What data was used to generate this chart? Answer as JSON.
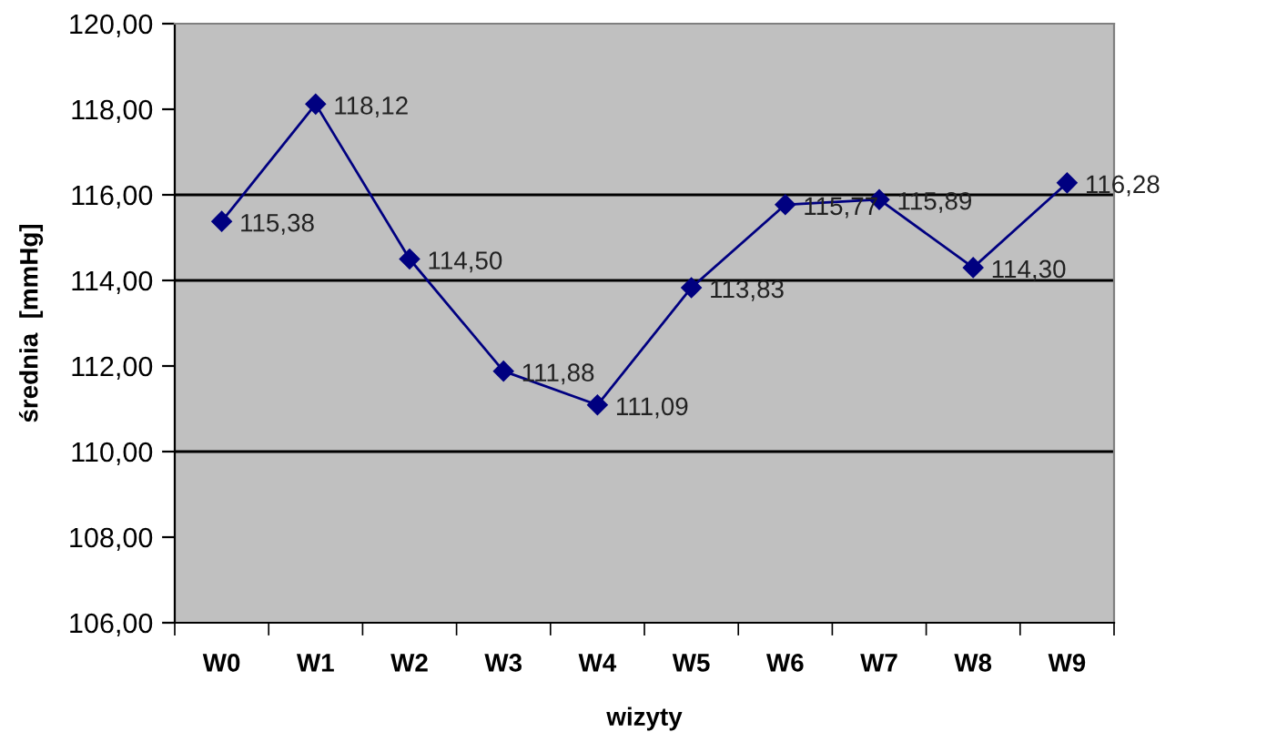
{
  "chart_data": {
    "type": "line",
    "xlabel": "wizyty",
    "ylabel": "średnia  [mmHg]",
    "categories": [
      "W0",
      "W1",
      "W2",
      "W3",
      "W4",
      "W5",
      "W6",
      "W7",
      "W8",
      "W9"
    ],
    "series": [
      {
        "color": "#000080",
        "values": [
          115.38,
          118.12,
          114.5,
          111.88,
          111.09,
          113.83,
          115.77,
          115.89,
          114.3,
          116.28
        ]
      }
    ],
    "value_labels": [
      "115,38",
      "118,12",
      "114,50",
      "111,88",
      "111,09",
      "113,83",
      "115,77",
      "115,89",
      "114,30",
      "116,28"
    ],
    "ylim": [
      106,
      120
    ],
    "yticks": [
      {
        "value": 106,
        "label": "106,00"
      },
      {
        "value": 108,
        "label": "108,00"
      },
      {
        "value": 110,
        "label": "110,00"
      },
      {
        "value": 112,
        "label": "112,00"
      },
      {
        "value": 114,
        "label": "114,00"
      },
      {
        "value": 116,
        "label": "116,00"
      },
      {
        "value": 118,
        "label": "118,00"
      },
      {
        "value": 120,
        "label": "120,00"
      }
    ],
    "ref_lines": [
      {
        "axis": "y",
        "value": 110,
        "color": "#000000"
      },
      {
        "axis": "y",
        "value": 114,
        "color": "#000000"
      },
      {
        "axis": "y",
        "value": 116,
        "color": "#000000"
      }
    ],
    "grid": false,
    "legend": false,
    "marker": "diamond",
    "line_style": "solid"
  }
}
